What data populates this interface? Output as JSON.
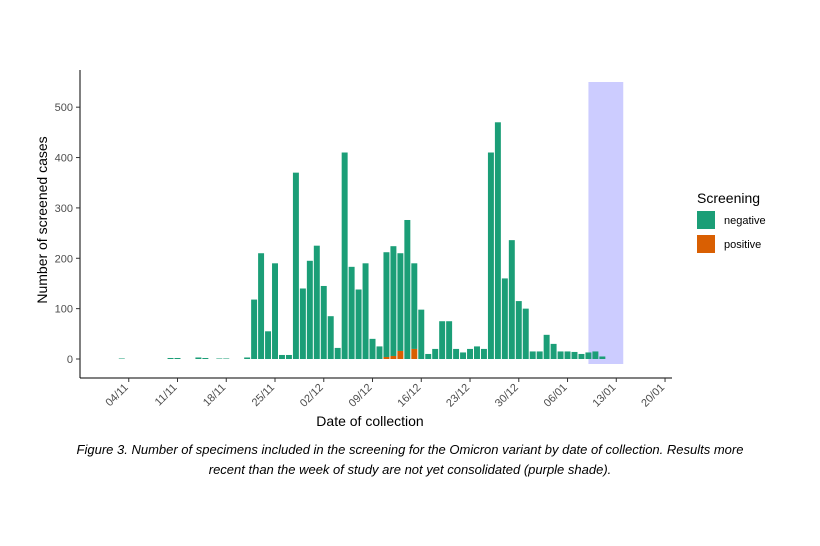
{
  "chart_data": {
    "type": "bar",
    "stacked": true,
    "xlabel": "Date of collection",
    "ylabel": "Number of screened cases",
    "ylim": [
      0,
      550
    ],
    "yticks": [
      0,
      100,
      200,
      300,
      400,
      500
    ],
    "xlim": [
      "2021-10-28",
      "2022-01-21"
    ],
    "xticks": [
      {
        "date": "2021-11-04",
        "label": "04/11"
      },
      {
        "date": "2021-11-11",
        "label": "11/11"
      },
      {
        "date": "2021-11-18",
        "label": "18/11"
      },
      {
        "date": "2021-11-25",
        "label": "25/11"
      },
      {
        "date": "2021-12-02",
        "label": "02/12"
      },
      {
        "date": "2021-12-09",
        "label": "09/12"
      },
      {
        "date": "2021-12-16",
        "label": "16/12"
      },
      {
        "date": "2021-12-23",
        "label": "23/12"
      },
      {
        "date": "2021-12-30",
        "label": "30/12"
      },
      {
        "date": "2022-01-06",
        "label": "06/01"
      },
      {
        "date": "2022-01-13",
        "label": "13/01"
      },
      {
        "date": "2022-01-20",
        "label": "20/01"
      }
    ],
    "grid": false,
    "legend": {
      "title": "Screening",
      "position": "right"
    },
    "shade": {
      "from": "2022-01-09",
      "to": "2022-01-14",
      "color": "#ccccff"
    },
    "colors": {
      "negative": "#1b9e77",
      "positive": "#d95f02"
    },
    "dates": [
      "2021-11-03",
      "2021-11-10",
      "2021-11-11",
      "2021-11-14",
      "2021-11-15",
      "2021-11-17",
      "2021-11-18",
      "2021-11-21",
      "2021-11-22",
      "2021-11-23",
      "2021-11-24",
      "2021-11-25",
      "2021-11-26",
      "2021-11-27",
      "2021-11-28",
      "2021-11-29",
      "2021-11-30",
      "2021-12-01",
      "2021-12-02",
      "2021-12-03",
      "2021-12-04",
      "2021-12-05",
      "2021-12-06",
      "2021-12-07",
      "2021-12-08",
      "2021-12-09",
      "2021-12-10",
      "2021-12-11",
      "2021-12-12",
      "2021-12-13",
      "2021-12-14",
      "2021-12-15",
      "2021-12-16",
      "2021-12-17",
      "2021-12-18",
      "2021-12-19",
      "2021-12-20",
      "2021-12-21",
      "2021-12-22",
      "2021-12-23",
      "2021-12-24",
      "2021-12-25",
      "2021-12-26",
      "2021-12-27",
      "2021-12-28",
      "2021-12-29",
      "2021-12-30",
      "2021-12-31",
      "2022-01-01",
      "2022-01-02",
      "2022-01-03",
      "2022-01-04",
      "2022-01-05",
      "2022-01-06",
      "2022-01-07",
      "2022-01-08",
      "2022-01-09",
      "2022-01-10",
      "2022-01-11"
    ],
    "series": [
      {
        "name": "negative",
        "values": [
          1,
          2,
          2,
          3,
          2,
          1,
          1,
          3,
          118,
          210,
          55,
          190,
          8,
          8,
          370,
          140,
          195,
          225,
          145,
          85,
          22,
          410,
          183,
          138,
          190,
          40,
          25,
          208,
          218,
          194,
          276,
          170,
          98,
          10,
          20,
          75,
          75,
          20,
          13,
          20,
          25,
          20,
          410,
          470,
          160,
          236,
          115,
          100,
          15,
          15,
          48,
          30,
          15,
          15,
          14,
          10,
          13,
          15,
          5
        ]
      },
      {
        "name": "positive",
        "values": [
          0,
          0,
          0,
          0,
          0,
          0,
          0,
          0,
          0,
          0,
          0,
          0,
          0,
          0,
          0,
          0,
          0,
          0,
          0,
          0,
          0,
          0,
          0,
          0,
          0,
          0,
          0,
          4,
          6,
          16,
          0,
          20,
          0,
          0,
          0,
          0,
          0,
          0,
          0,
          0,
          0,
          0,
          0,
          0,
          0,
          0,
          0,
          0,
          0,
          0,
          0,
          0,
          0,
          0,
          0,
          0,
          0,
          0,
          0
        ]
      }
    ]
  },
  "caption": {
    "line1": "Figure 3. Number of specimens included in the screening for the Omicron variant by date of collection. Results more",
    "line2": "recent than the week of study are not yet consolidated (purple shade)."
  }
}
